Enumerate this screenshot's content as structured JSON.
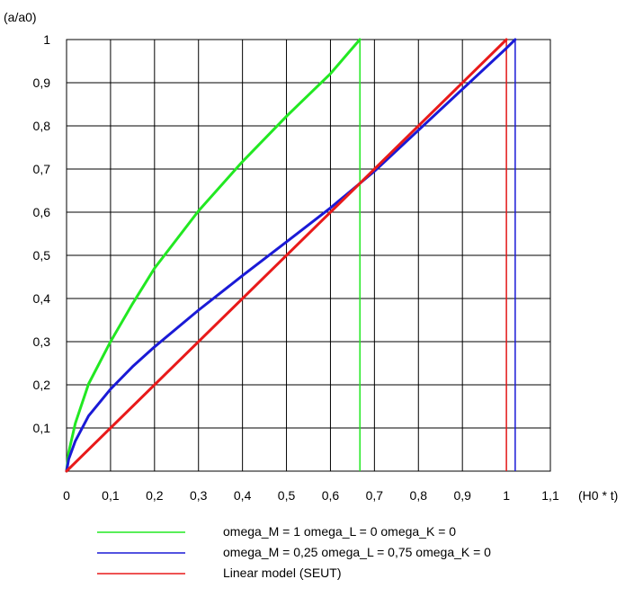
{
  "chart_data": {
    "type": "line",
    "ylabel": "(a/a0)",
    "xlabel": "(H0 * t)",
    "xlim": [
      0,
      1.1
    ],
    "ylim": [
      0,
      1
    ],
    "x_ticks": [
      "0",
      "0,1",
      "0,2",
      "0,3",
      "0,4",
      "0,5",
      "0,6",
      "0,7",
      "0,8",
      "0,9",
      "1",
      "1,1"
    ],
    "y_ticks": [
      "0,1",
      "0,2",
      "0,3",
      "0,4",
      "0,5",
      "0,6",
      "0,7",
      "0,8",
      "0,9",
      "1"
    ],
    "grid": true,
    "legend_position": "bottom",
    "series": [
      {
        "name": "omega_M = 1   omega_L = 0   omega_K = 0",
        "color": "#22e822",
        "x": [
          0,
          0.005,
          0.02,
          0.05,
          0.1,
          0.15,
          0.2,
          0.3,
          0.4,
          0.5,
          0.6,
          0.6667
        ],
        "y": [
          0,
          0.044,
          0.111,
          0.202,
          0.3,
          0.388,
          0.47,
          0.603,
          0.717,
          0.822,
          0.921,
          1.0
        ],
        "vline": 0.667
      },
      {
        "name": "omega_M = 0,25   omega_L = 0,75   omega_K = 0",
        "color": "#1a1ad6",
        "x": [
          0,
          0.005,
          0.02,
          0.05,
          0.1,
          0.15,
          0.2,
          0.3,
          0.4,
          0.5,
          0.6,
          0.7,
          0.8,
          0.9,
          1.0,
          1.02
        ],
        "y": [
          0,
          0.028,
          0.07,
          0.128,
          0.19,
          0.242,
          0.288,
          0.373,
          0.453,
          0.531,
          0.61,
          0.695,
          0.79,
          0.885,
          0.98,
          1.0
        ],
        "vline": 1.02
      },
      {
        "name": "Linear model (SEUT)",
        "color": "#e81a1a",
        "x": [
          0,
          1.0
        ],
        "y": [
          0,
          1.0
        ],
        "vline": 1.0
      }
    ]
  }
}
